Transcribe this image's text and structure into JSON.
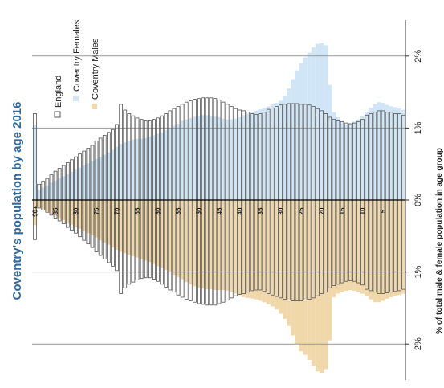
{
  "chart_data": {
    "type": "pyramid",
    "title": "Coventry's population by age 2016",
    "axis_label": "% of total male & female population in age group",
    "categories": [
      null,
      null,
      null,
      null,
      null,
      "5",
      null,
      null,
      null,
      null,
      "10",
      null,
      null,
      null,
      null,
      "15",
      null,
      null,
      null,
      null,
      "20",
      null,
      null,
      null,
      null,
      "25",
      null,
      null,
      null,
      null,
      "30",
      null,
      null,
      null,
      null,
      "35",
      null,
      null,
      null,
      null,
      "40",
      null,
      null,
      null,
      null,
      "45",
      null,
      null,
      null,
      null,
      "50",
      null,
      null,
      null,
      null,
      "55",
      null,
      null,
      null,
      null,
      "60",
      null,
      null,
      null,
      null,
      "65",
      null,
      null,
      null,
      null,
      "70",
      null,
      null,
      null,
      null,
      "75",
      null,
      null,
      null,
      null,
      "80",
      null,
      null,
      null,
      null,
      "85",
      null,
      null,
      null,
      null,
      "90+"
    ],
    "series": [
      {
        "name": "Coventry Females",
        "color": "#d0e6f6",
        "values": [
          1.25,
          1.27,
          1.29,
          1.3,
          1.32,
          1.35,
          1.36,
          1.33,
          1.28,
          1.22,
          1.16,
          1.12,
          1.09,
          1.06,
          1.05,
          1.08,
          1.15,
          1.22,
          1.6,
          2.15,
          2.18,
          2.17,
          2.12,
          2.05,
          1.98,
          1.9,
          1.8,
          1.68,
          1.55,
          1.45,
          1.38,
          1.35,
          1.33,
          1.3,
          1.28,
          1.26,
          1.24,
          1.22,
          1.2,
          1.18,
          1.15,
          1.13,
          1.12,
          1.12,
          1.13,
          1.15,
          1.16,
          1.17,
          1.18,
          1.18,
          1.17,
          1.16,
          1.14,
          1.12,
          1.1,
          1.06,
          1.03,
          1.0,
          0.97,
          0.94,
          0.92,
          0.9,
          0.88,
          0.86,
          0.85,
          0.85,
          0.84,
          0.82,
          0.8,
          0.78,
          0.74,
          0.7,
          0.66,
          0.63,
          0.6,
          0.57,
          0.54,
          0.51,
          0.48,
          0.45,
          0.42,
          0.39,
          0.36,
          0.33,
          0.3,
          0.27,
          0.24,
          0.2,
          0.17,
          0.14,
          1.05
        ]
      },
      {
        "name": "Coventry Males",
        "color": "#f1d8ab",
        "values": [
          1.3,
          1.32,
          1.33,
          1.35,
          1.37,
          1.4,
          1.42,
          1.42,
          1.38,
          1.33,
          1.3,
          1.28,
          1.26,
          1.25,
          1.26,
          1.28,
          1.3,
          1.35,
          1.95,
          2.35,
          2.4,
          2.38,
          2.3,
          2.22,
          2.15,
          2.1,
          2.0,
          1.88,
          1.75,
          1.65,
          1.58,
          1.52,
          1.48,
          1.45,
          1.42,
          1.4,
          1.38,
          1.37,
          1.36,
          1.35,
          1.32,
          1.3,
          1.28,
          1.26,
          1.25,
          1.25,
          1.25,
          1.24,
          1.24,
          1.23,
          1.22,
          1.2,
          1.17,
          1.14,
          1.1,
          1.07,
          1.04,
          1.0,
          0.97,
          0.94,
          0.92,
          0.89,
          0.86,
          0.84,
          0.82,
          0.8,
          0.78,
          0.76,
          0.74,
          0.72,
          0.69,
          0.66,
          0.62,
          0.59,
          0.56,
          0.52,
          0.49,
          0.46,
          0.43,
          0.4,
          0.37,
          0.34,
          0.31,
          0.28,
          0.25,
          0.22,
          0.19,
          0.16,
          0.13,
          0.1,
          0.35
        ]
      }
    ],
    "england": {
      "name": "England",
      "color": "#555555",
      "female_values": [
        1.18,
        1.2,
        1.2,
        1.22,
        1.22,
        1.24,
        1.24,
        1.22,
        1.2,
        1.18,
        1.12,
        1.09,
        1.07,
        1.06,
        1.07,
        1.09,
        1.1,
        1.12,
        1.15,
        1.2,
        1.24,
        1.27,
        1.3,
        1.32,
        1.33,
        1.33,
        1.34,
        1.34,
        1.34,
        1.33,
        1.32,
        1.3,
        1.28,
        1.26,
        1.22,
        1.2,
        1.19,
        1.2,
        1.22,
        1.24,
        1.25,
        1.27,
        1.3,
        1.33,
        1.36,
        1.39,
        1.41,
        1.42,
        1.42,
        1.42,
        1.41,
        1.4,
        1.38,
        1.36,
        1.33,
        1.3,
        1.27,
        1.24,
        1.2,
        1.17,
        1.14,
        1.12,
        1.1,
        1.1,
        1.12,
        1.14,
        1.17,
        1.2,
        1.25,
        1.33,
        1.05,
        0.98,
        0.94,
        0.9,
        0.86,
        0.82,
        0.76,
        0.72,
        0.68,
        0.64,
        0.6,
        0.56,
        0.52,
        0.48,
        0.44,
        0.4,
        0.35,
        0.3,
        0.26,
        0.22,
        1.2
      ],
      "male_values": [
        1.24,
        1.26,
        1.27,
        1.28,
        1.29,
        1.3,
        1.3,
        1.28,
        1.26,
        1.24,
        1.18,
        1.15,
        1.13,
        1.12,
        1.13,
        1.15,
        1.17,
        1.19,
        1.22,
        1.28,
        1.3,
        1.33,
        1.36,
        1.38,
        1.39,
        1.4,
        1.4,
        1.4,
        1.39,
        1.38,
        1.36,
        1.34,
        1.32,
        1.3,
        1.27,
        1.25,
        1.25,
        1.26,
        1.28,
        1.3,
        1.31,
        1.33,
        1.36,
        1.39,
        1.42,
        1.44,
        1.46,
        1.46,
        1.46,
        1.45,
        1.44,
        1.42,
        1.4,
        1.38,
        1.35,
        1.32,
        1.28,
        1.25,
        1.21,
        1.17,
        1.13,
        1.1,
        1.08,
        1.08,
        1.09,
        1.11,
        1.14,
        1.17,
        1.22,
        1.3,
        0.98,
        0.92,
        0.87,
        0.82,
        0.77,
        0.72,
        0.66,
        0.61,
        0.56,
        0.51,
        0.46,
        0.42,
        0.38,
        0.33,
        0.29,
        0.25,
        0.21,
        0.17,
        0.14,
        0.11,
        0.55
      ]
    },
    "ylim": [
      0,
      2.5
    ],
    "yticks": [
      {
        "value": 2,
        "label": "2%"
      },
      {
        "value": 1,
        "label": "1%"
      },
      {
        "value": 0,
        "label": "0%"
      }
    ],
    "y2lim": [
      0,
      2.5
    ],
    "y2ticks": [
      {
        "value": 1,
        "label": "1%"
      },
      {
        "value": 2,
        "label": "2%"
      }
    ],
    "grid": true
  }
}
